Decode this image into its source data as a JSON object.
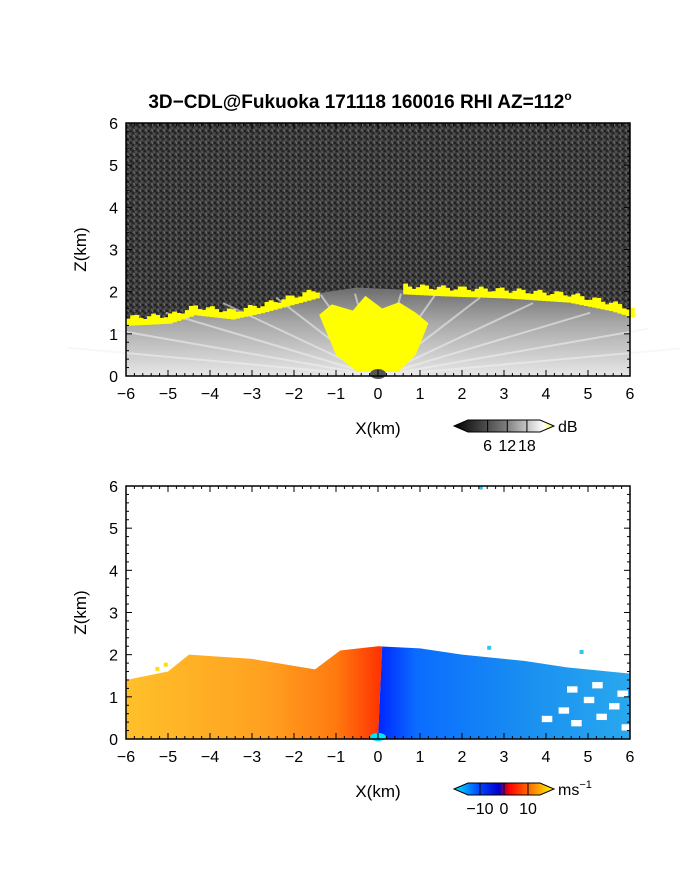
{
  "title": "3D−CDL@Fukuoka 171118 160016 RHI AZ=112",
  "title_degree": "o",
  "chart_data": [
    {
      "type": "heatmap",
      "quantity": "reflectivity",
      "xlabel": "X(km)",
      "ylabel": "Z(km)",
      "xlim": [
        -6,
        6
      ],
      "ylim": [
        0,
        6
      ],
      "x_ticks": [
        "−6",
        "−5",
        "−4",
        "−3",
        "−2",
        "−1",
        "0",
        "1",
        "2",
        "3",
        "4",
        "5",
        "6"
      ],
      "y_ticks": [
        "0",
        "1",
        "2",
        "3",
        "4",
        "5",
        "6"
      ],
      "colorbar": {
        "unit": "dB",
        "tick_labels": [
          "6",
          "12",
          "18"
        ],
        "tick_values": [
          6,
          12,
          18
        ],
        "range": [
          0,
          22
        ],
        "colors": [
          "#000000",
          "#777777",
          "#ffffff",
          "#ffff00"
        ]
      },
      "background_noise_color": "#3a3a3a",
      "echo_top_km": [
        {
          "x": -6.0,
          "z": 1.3
        },
        {
          "x": -5.0,
          "z": 1.35
        },
        {
          "x": -4.4,
          "z": 1.55
        },
        {
          "x": -3.5,
          "z": 1.45
        },
        {
          "x": -2.8,
          "z": 1.6
        },
        {
          "x": -1.5,
          "z": 1.95
        },
        {
          "x": -0.5,
          "z": 2.1
        },
        {
          "x": 0.5,
          "z": 2.05
        },
        {
          "x": 1.5,
          "z": 2.0
        },
        {
          "x": 3.0,
          "z": 1.95
        },
        {
          "x": 4.5,
          "z": 1.85
        },
        {
          "x": 5.5,
          "z": 1.65
        },
        {
          "x": 6.0,
          "z": 1.5
        }
      ],
      "saturated_region_color": "#ffff00"
    },
    {
      "type": "heatmap",
      "quantity": "doppler_velocity",
      "xlabel": "X(km)",
      "ylabel": "Z(km)",
      "xlim": [
        -6,
        6
      ],
      "ylim": [
        0,
        6
      ],
      "x_ticks": [
        "−6",
        "−5",
        "−4",
        "−3",
        "−2",
        "−1",
        "0",
        "1",
        "2",
        "3",
        "4",
        "5",
        "6"
      ],
      "y_ticks": [
        "0",
        "1",
        "2",
        "3",
        "4",
        "5",
        "6"
      ],
      "colorbar": {
        "unit": "ms",
        "unit_exponent": "−1",
        "tick_labels": [
          "−10",
          "0",
          "10"
        ],
        "tick_values": [
          -10,
          0,
          10
        ],
        "range": [
          -15,
          15
        ],
        "colors": [
          "#00e5ff",
          "#0047ff",
          "#0000cc",
          "#ff0000",
          "#ff8800",
          "#ffff00"
        ]
      },
      "echo_top_km": [
        {
          "x": -6.0,
          "z": 1.4
        },
        {
          "x": -5.0,
          "z": 1.6
        },
        {
          "x": -4.5,
          "z": 2.0
        },
        {
          "x": -3.0,
          "z": 1.9
        },
        {
          "x": -1.5,
          "z": 1.65
        },
        {
          "x": -0.9,
          "z": 2.1
        },
        {
          "x": 0.0,
          "z": 2.2
        },
        {
          "x": 1.0,
          "z": 2.15
        },
        {
          "x": 2.0,
          "z": 2.0
        },
        {
          "x": 3.5,
          "z": 1.85
        },
        {
          "x": 4.5,
          "z": 1.7
        },
        {
          "x": 6.0,
          "z": 1.55
        }
      ],
      "velocity_field": [
        {
          "x_range": [
            -6,
            -1
          ],
          "velocity_ms": 9
        },
        {
          "x_range": [
            -1,
            0
          ],
          "velocity_ms": 3
        },
        {
          "x_range": [
            0,
            0.3
          ],
          "velocity_ms": -6
        },
        {
          "x_range": [
            0.3,
            6
          ],
          "velocity_ms": -10
        }
      ]
    }
  ]
}
